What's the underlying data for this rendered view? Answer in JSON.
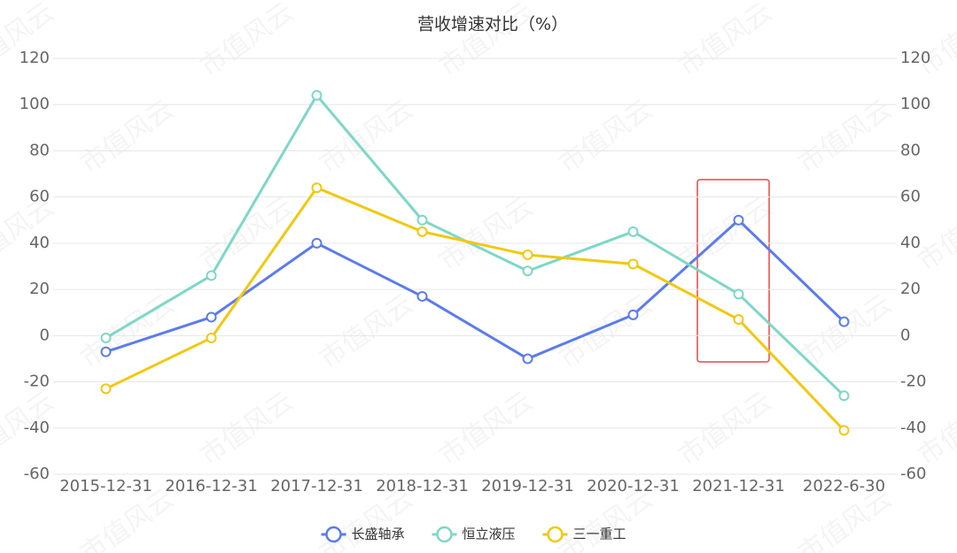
{
  "chart_data": {
    "type": "line",
    "title": "营收增速对比（%）",
    "categories": [
      "2015-12-31",
      "2016-12-31",
      "2017-12-31",
      "2018-12-31",
      "2019-12-31",
      "2020-12-31",
      "2021-12-31",
      "2022-6-30"
    ],
    "series": [
      {
        "name": "长盛轴承",
        "color": "#5b7bf0",
        "values": [
          -7,
          8,
          40,
          17,
          -10,
          9,
          50,
          6
        ]
      },
      {
        "name": "恒立液压",
        "color": "#7dd8c6",
        "values": [
          -1,
          26,
          104,
          50,
          28,
          45,
          18,
          -26
        ]
      },
      {
        "name": "三一重工",
        "color": "#f2c80f",
        "values": [
          -23,
          -1,
          64,
          45,
          35,
          31,
          7,
          -41
        ]
      }
    ],
    "ylim": [
      -60,
      120
    ],
    "yticks": [
      -60,
      -40,
      -20,
      0,
      20,
      40,
      60,
      80,
      100,
      120
    ],
    "y2lim": [
      -60,
      120
    ],
    "y2ticks": [
      -60,
      -40,
      -20,
      0,
      20,
      40,
      60,
      80,
      100,
      120
    ],
    "grid": true,
    "legend": "bottom",
    "watermark": "市值风云"
  }
}
